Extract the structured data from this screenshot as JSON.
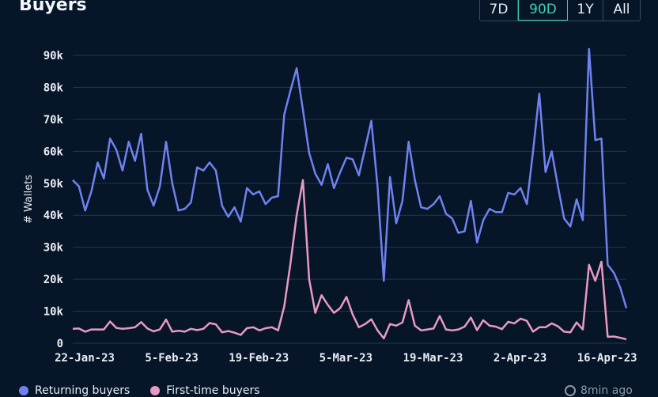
{
  "header": {
    "title": "Buyers"
  },
  "range_tabs": [
    {
      "label": "7D",
      "active": false
    },
    {
      "label": "90D",
      "active": true
    },
    {
      "label": "1Y",
      "active": false
    },
    {
      "label": "All",
      "active": false
    }
  ],
  "footer": {
    "updated": "8min ago"
  },
  "colors": {
    "returning": "#6f82ef",
    "first_time": "#e79ac4",
    "accent": "#3ecfae",
    "background": "#061528"
  },
  "chart_data": {
    "type": "line",
    "ylabel": "# Wallets",
    "ylim": [
      0,
      90000
    ],
    "y_ticks": [
      {
        "value": 0,
        "label": "0"
      },
      {
        "value": 10000,
        "label": "10k"
      },
      {
        "value": 20000,
        "label": "20k"
      },
      {
        "value": 30000,
        "label": "30k"
      },
      {
        "value": 40000,
        "label": "40k"
      },
      {
        "value": 50000,
        "label": "50k"
      },
      {
        "value": 60000,
        "label": "60k"
      },
      {
        "value": 70000,
        "label": "70k"
      },
      {
        "value": 80000,
        "label": "80k"
      },
      {
        "value": 90000,
        "label": "90k"
      }
    ],
    "x_ticks": [
      {
        "index": 0,
        "label": "22-Jan-23"
      },
      {
        "index": 14,
        "label": "5-Feb-23"
      },
      {
        "index": 28,
        "label": "19-Feb-23"
      },
      {
        "index": 42,
        "label": "5-Mar-23"
      },
      {
        "index": 56,
        "label": "19-Mar-23"
      },
      {
        "index": 70,
        "label": "2-Apr-23"
      },
      {
        "index": 84,
        "label": "16-Apr-23"
      }
    ],
    "x_start": "2023-01-22",
    "series": [
      {
        "name": "Returning buyers",
        "color": "#6f82ef",
        "values": [
          51000,
          49000,
          41500,
          47500,
          56500,
          51500,
          64000,
          60500,
          54000,
          63000,
          57000,
          65500,
          48000,
          43000,
          49000,
          63000,
          50000,
          41500,
          42000,
          44000,
          55000,
          54000,
          56500,
          54000,
          43000,
          39500,
          42500,
          38000,
          48500,
          46500,
          47500,
          43500,
          45500,
          46000,
          71500,
          79000,
          86000,
          73000,
          59500,
          53000,
          49500,
          56000,
          48500,
          53500,
          58000,
          57500,
          52500,
          61000,
          69500,
          49000,
          19500,
          52000,
          37500,
          44500,
          63000,
          51000,
          42500,
          42000,
          43500,
          46000,
          40500,
          39000,
          34500,
          35000,
          44500,
          31500,
          38500,
          42000,
          41000,
          41000,
          47000,
          46500,
          48500,
          43500,
          60000,
          78000,
          53500,
          60000,
          49000,
          39000,
          36500,
          45000,
          38500,
          92000,
          63500,
          64000,
          24500,
          22000,
          17500,
          11000
        ]
      },
      {
        "name": "First-time buyers",
        "color": "#e79ac4",
        "values": [
          4500,
          4600,
          3600,
          4300,
          4300,
          4300,
          6800,
          4800,
          4500,
          4700,
          5000,
          6600,
          4600,
          3700,
          4300,
          7400,
          3600,
          3900,
          3600,
          4500,
          4100,
          4500,
          6300,
          5900,
          3400,
          3800,
          3300,
          2600,
          4700,
          5000,
          4000,
          4700,
          5000,
          4000,
          11500,
          25000,
          40000,
          51000,
          20000,
          9500,
          15000,
          12000,
          9500,
          11000,
          14500,
          9000,
          5000,
          6000,
          7500,
          4000,
          1500,
          6000,
          5500,
          6500,
          13500,
          5500,
          4000,
          4300,
          4600,
          8500,
          4300,
          4000,
          4300,
          5200,
          8000,
          4100,
          7200,
          5500,
          5200,
          4400,
          6700,
          6200,
          7700,
          7000,
          3600,
          5000,
          5000,
          6200,
          5300,
          3600,
          3400,
          6500,
          4300,
          24500,
          19500,
          25500,
          2000,
          2100,
          1700,
          1200
        ]
      }
    ]
  }
}
